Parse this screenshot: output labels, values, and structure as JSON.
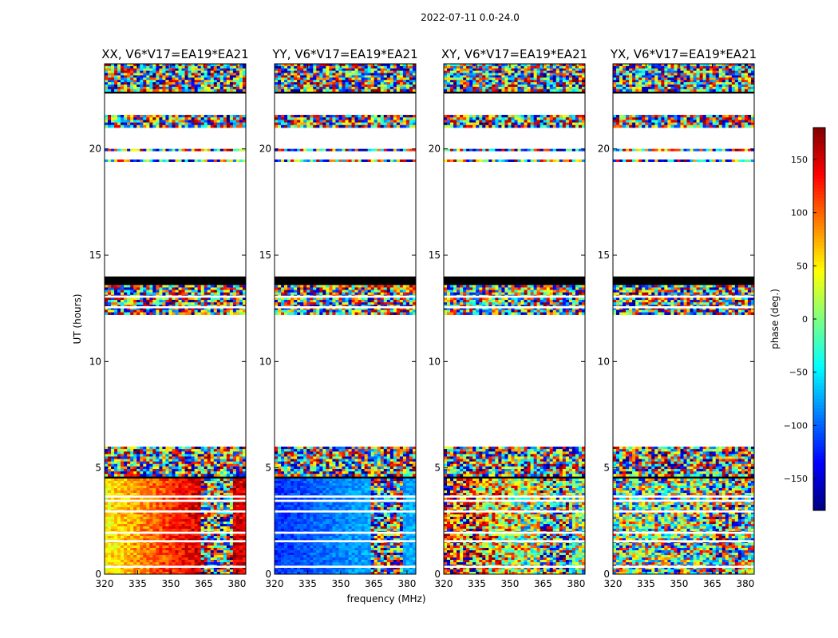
{
  "chart_data": {
    "type": "heatmap",
    "figure_title": "2022-07-11 0.0-24.0",
    "xlabel": "frequency (MHz)",
    "ylabel": "UT (hours)",
    "xlim": [
      320,
      384
    ],
    "ylim": [
      0,
      24
    ],
    "x_ticks": [
      320,
      335,
      350,
      365,
      380
    ],
    "y_ticks": [
      0,
      5,
      10,
      15,
      20
    ],
    "colorbar": {
      "label": "phase (deg.)",
      "min": -180,
      "max": 180,
      "ticks": [
        -150,
        -100,
        -50,
        0,
        50,
        100,
        150
      ],
      "tick_labels": [
        "−150",
        "−100",
        "−50",
        "0",
        "50",
        "100",
        "150"
      ],
      "colormap": [
        "#00007f",
        "#0000ff",
        "#007fff",
        "#00ffff",
        "#7fff7f",
        "#ffff00",
        "#ff7f00",
        "#ff0000",
        "#7f0000"
      ]
    },
    "time_blocks": [
      {
        "start": 0.0,
        "end": 4.5,
        "state": "data"
      },
      {
        "start": 4.5,
        "end": 4.6,
        "state": "flagged"
      },
      {
        "start": 4.6,
        "end": 6.0,
        "state": "noisy"
      },
      {
        "start": 12.2,
        "end": 13.6,
        "state": "noisy"
      },
      {
        "start": 13.6,
        "end": 14.0,
        "state": "flagged"
      },
      {
        "start": 19.4,
        "end": 19.5,
        "state": "noisy"
      },
      {
        "start": 19.9,
        "end": 20.0,
        "state": "noisy"
      },
      {
        "start": 21.0,
        "end": 21.6,
        "state": "noisy"
      },
      {
        "start": 22.6,
        "end": 22.7,
        "state": "flagged"
      },
      {
        "start": 22.7,
        "end": 24.0,
        "state": "noisy"
      }
    ],
    "gaps": [
      [
        0.3,
        0.4
      ],
      [
        1.5,
        1.6
      ],
      [
        1.9,
        2.0
      ],
      [
        2.9,
        3.0
      ],
      [
        3.4,
        3.5
      ],
      [
        3.6,
        3.7
      ],
      [
        12.5,
        12.6
      ],
      [
        13.0,
        13.1
      ]
    ],
    "freq_segments": [
      {
        "start": 320,
        "end": 363,
        "state": "smooth"
      },
      {
        "start": 363,
        "end": 378,
        "state": "rfi"
      },
      {
        "start": 378,
        "end": 384,
        "state": "smooth2"
      }
    ],
    "panels": [
      {
        "name": "xx",
        "title": "XX, V6*V17=EA19*EA21",
        "mean_phase_low": 45,
        "mean_phase_high": 150,
        "spread": 30,
        "noise_mean": 30
      },
      {
        "name": "yy",
        "title": "YY, V6*V17=EA19*EA21",
        "mean_phase_low": -120,
        "mean_phase_high": -75,
        "spread": 20,
        "noise_mean": -90
      },
      {
        "name": "xy",
        "title": "XY, V6*V17=EA19*EA21",
        "mean_phase_low": 130,
        "mean_phase_high": 0,
        "spread": 120,
        "noise_mean": 0
      },
      {
        "name": "yx",
        "title": "YX, V6*V17=EA19*EA21",
        "mean_phase_low": 0,
        "mean_phase_high": 0,
        "spread": 140,
        "noise_mean": 0
      }
    ]
  }
}
